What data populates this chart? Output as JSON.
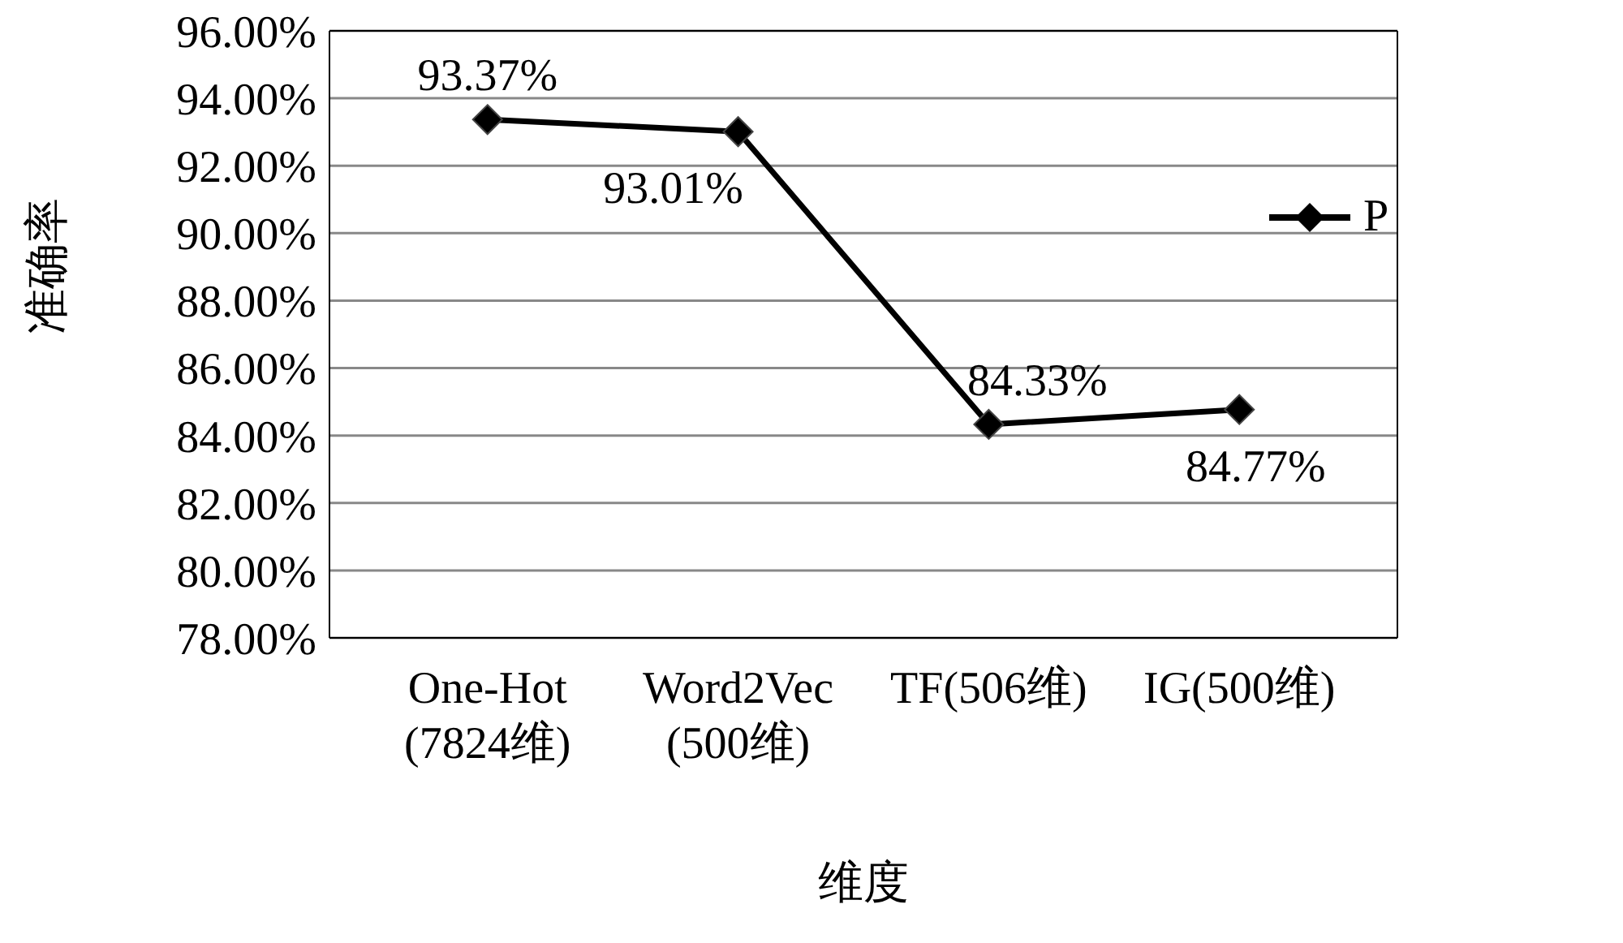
{
  "chart_data": {
    "type": "line",
    "xlabel": "维度",
    "ylabel": "准确率",
    "categories": [
      "One-Hot\n(7824维)",
      "Word2Vec\n(500维)",
      "TF(506维)",
      "IG(500维)"
    ],
    "series": [
      {
        "name": "P",
        "color": "#000000",
        "values": [
          93.37,
          93.01,
          84.33,
          84.77
        ],
        "value_labels": [
          "93.37%",
          "93.01%",
          "84.33%",
          "84.77%"
        ]
      }
    ],
    "ylim": [
      78,
      96
    ],
    "yticks": [
      {
        "value": 78,
        "label": "78.00%"
      },
      {
        "value": 80,
        "label": "80.00%"
      },
      {
        "value": 82,
        "label": "82.00%"
      },
      {
        "value": 84,
        "label": "84.00%"
      },
      {
        "value": 86,
        "label": "86.00%"
      },
      {
        "value": 88,
        "label": "88.00%"
      },
      {
        "value": 90,
        "label": "90.00%"
      },
      {
        "value": 92,
        "label": "92.00%"
      },
      {
        "value": 94,
        "label": "94.00%"
      },
      {
        "value": 96,
        "label": "96.00%"
      }
    ],
    "grid": "y",
    "legend": "right",
    "marker": "diamond",
    "line_style": "solid"
  }
}
